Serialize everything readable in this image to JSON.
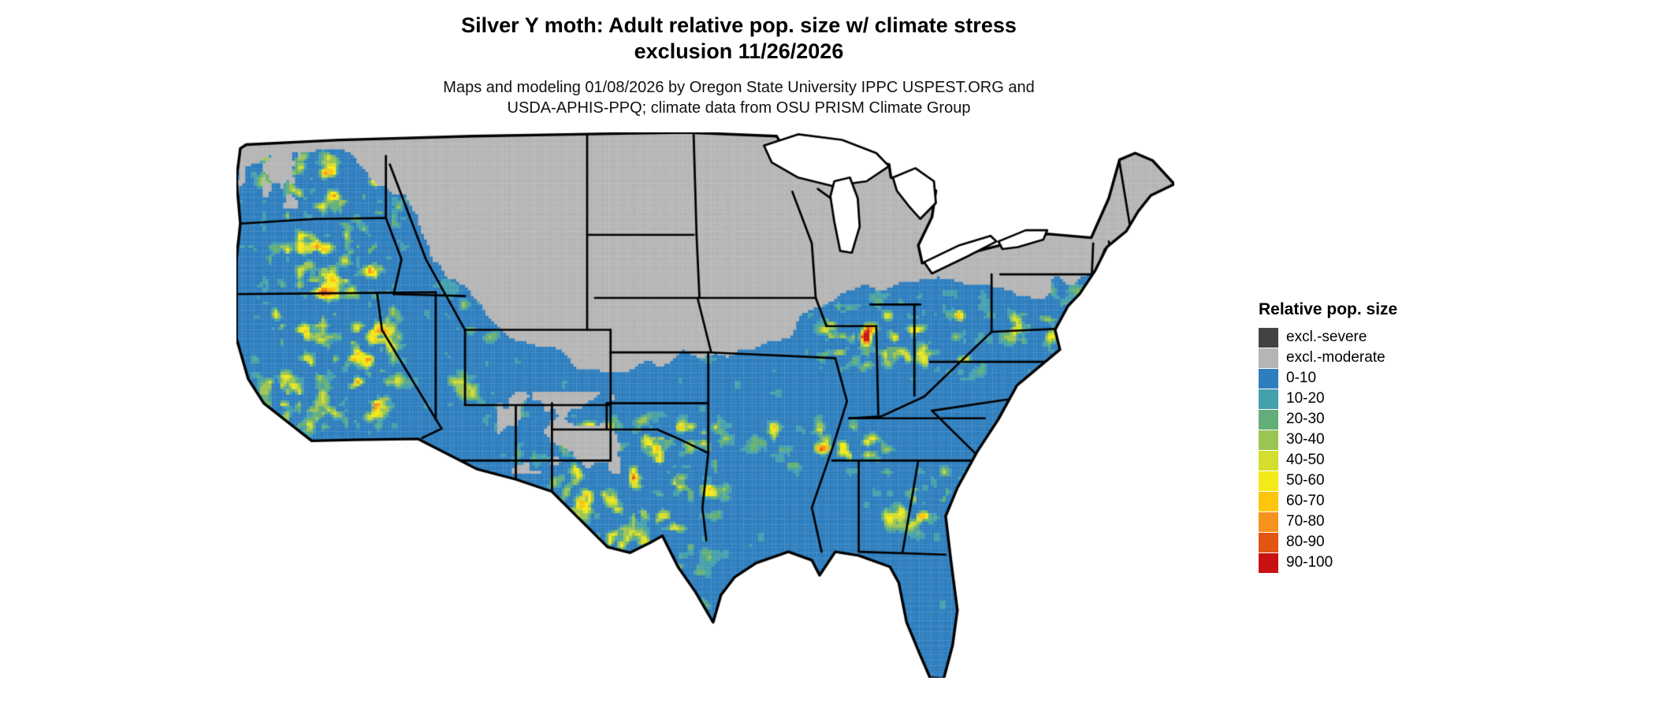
{
  "header": {
    "title_line1": "Silver Y moth: Adult relative pop. size w/ climate stress",
    "title_line2": "exclusion 11/26/2026",
    "subtitle_line1": "Maps and modeling 01/08/2026 by Oregon State University IPPC USPEST.ORG and",
    "subtitle_line2": "USDA-APHIS-PPQ; climate data from OSU PRISM Climate Group"
  },
  "legend": {
    "title": "Relative pop. size",
    "items": [
      {
        "label": "excl.-severe",
        "color": "#424242"
      },
      {
        "label": "excl.-moderate",
        "color": "#b5b5b5"
      },
      {
        "label": "0-10",
        "color": "#2e7ebe"
      },
      {
        "label": "10-20",
        "color": "#45a0ad"
      },
      {
        "label": "20-30",
        "color": "#63ae78"
      },
      {
        "label": "30-40",
        "color": "#9cc454"
      },
      {
        "label": "40-50",
        "color": "#d3de2e"
      },
      {
        "label": "50-60",
        "color": "#f4ea19"
      },
      {
        "label": "60-70",
        "color": "#fcc60f"
      },
      {
        "label": "70-80",
        "color": "#f6921e"
      },
      {
        "label": "80-90",
        "color": "#e25513"
      },
      {
        "label": "90-100",
        "color": "#c81212"
      }
    ]
  },
  "map": {
    "region": "Continental United States",
    "water_color": "#ffffff",
    "state_border_color": "#000000"
  }
}
